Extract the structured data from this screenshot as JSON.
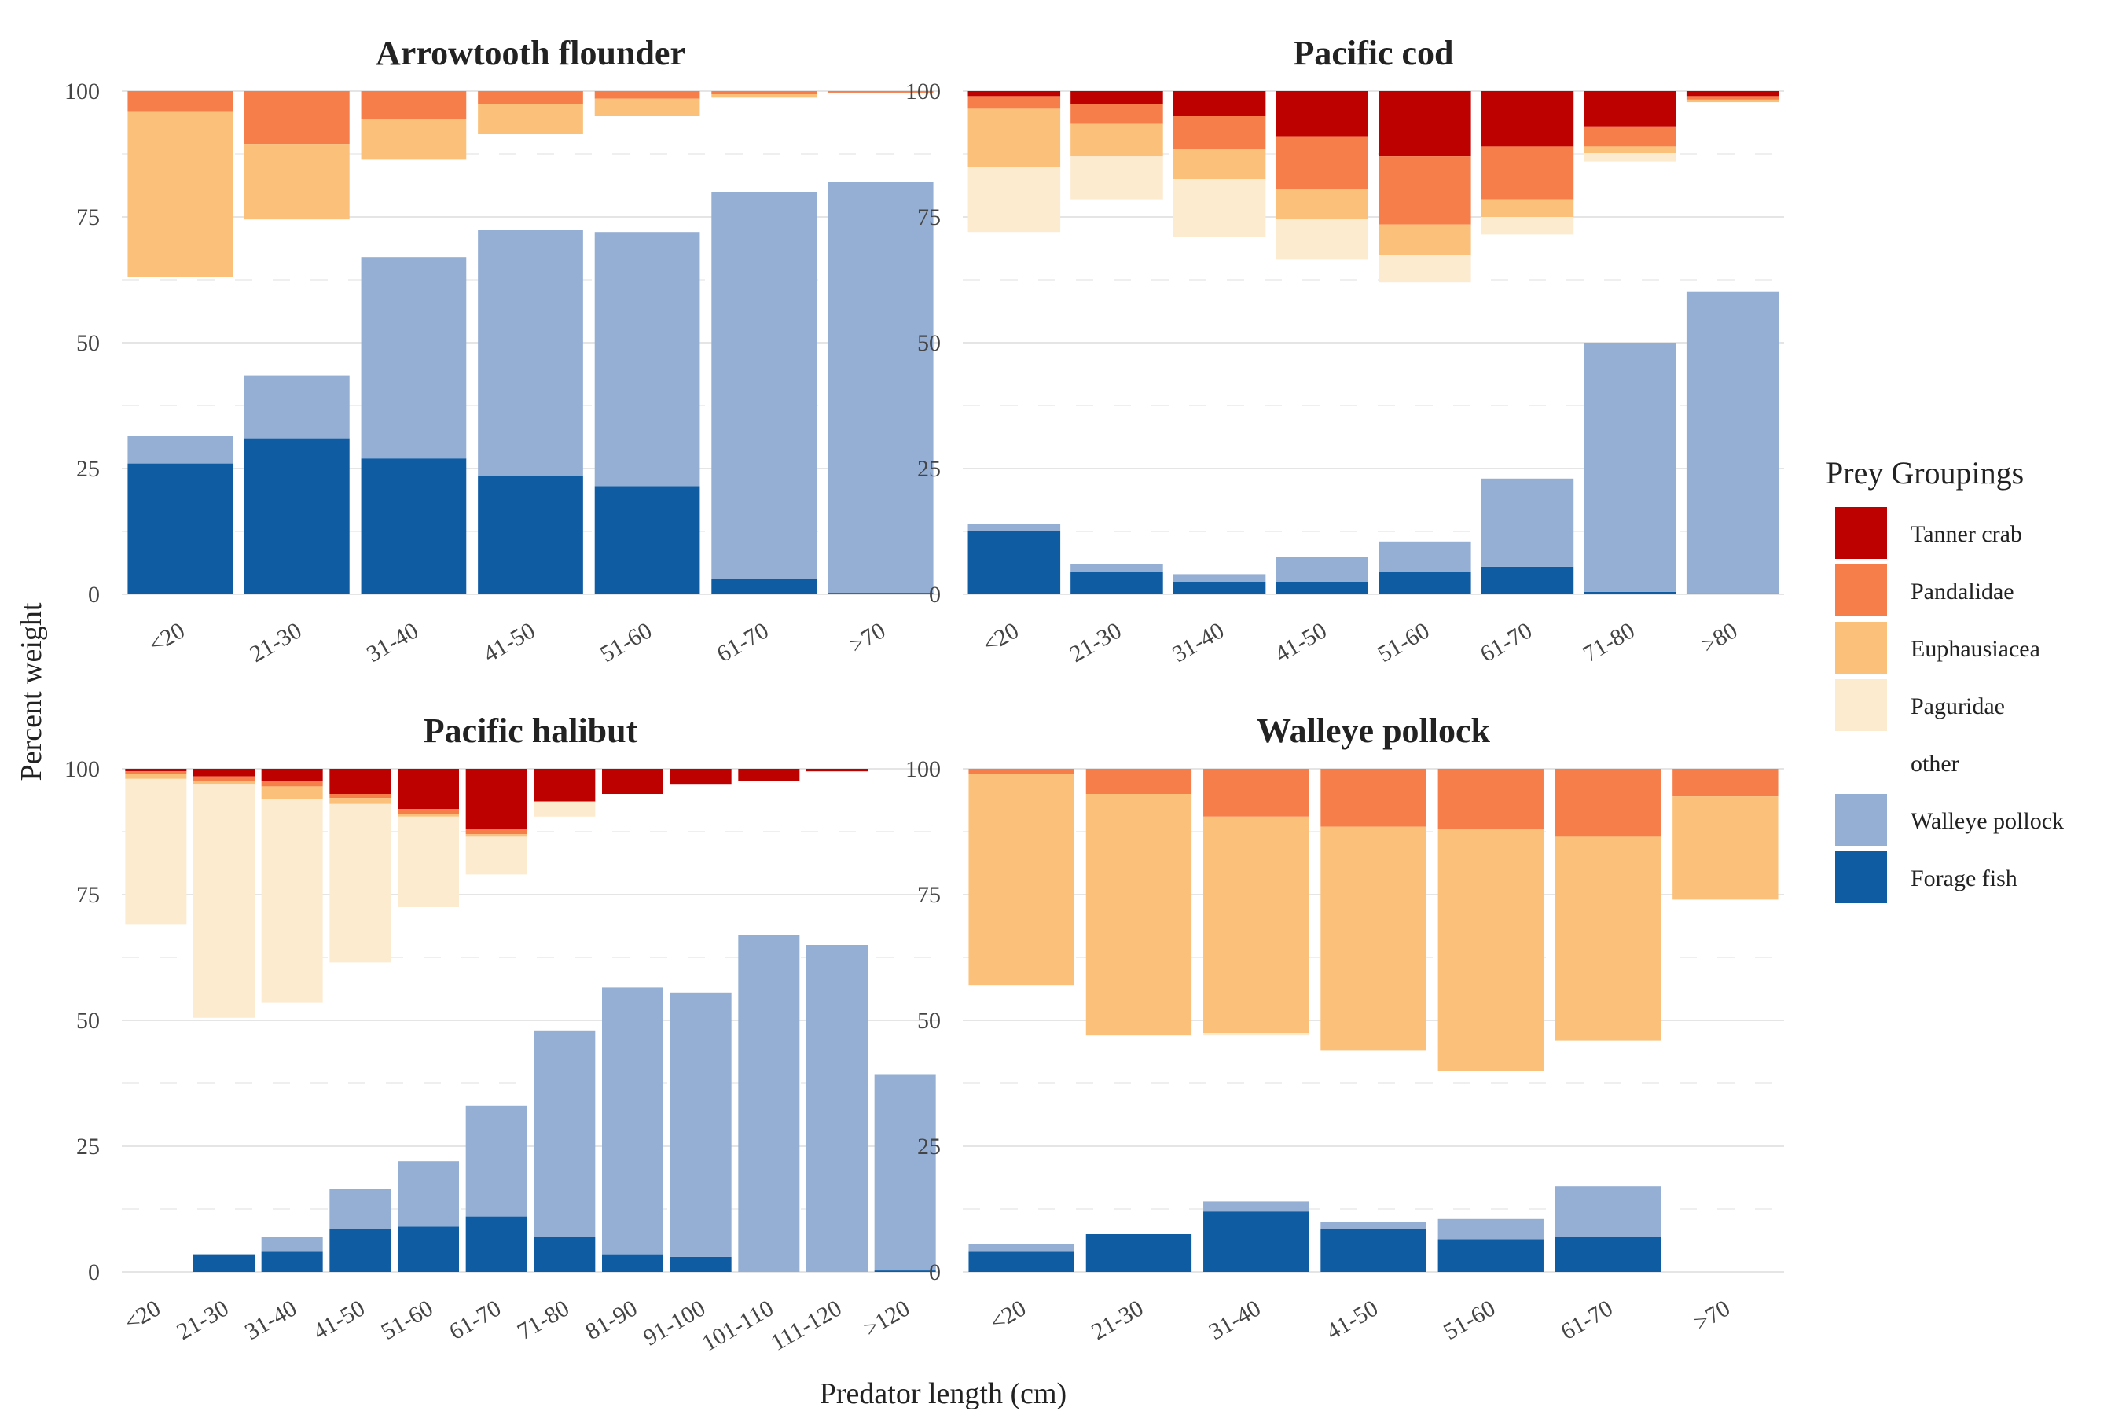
{
  "chart_data": {
    "type": "bar",
    "stacking": "stacked segments from top (prey) and bottom (fish prey), percent weight",
    "xlabel": "Predator length (cm)",
    "ylabel": "Percent weight",
    "ylim": [
      0,
      100
    ],
    "yticks": [
      0,
      25,
      50,
      75,
      100
    ],
    "grid": true,
    "legend": {
      "title": "Prey Groupings",
      "position": "right",
      "entries": [
        {
          "name": "Tanner crab",
          "color": "#bd0000"
        },
        {
          "name": "Pandalidae",
          "color": "#f67e4b"
        },
        {
          "name": "Euphausiacea",
          "color": "#fbc07a"
        },
        {
          "name": "Paguridae",
          "color": "#fdebd0"
        },
        {
          "name": "other",
          "color": "#ffffff"
        },
        {
          "name": "Walleye pollock",
          "color": "#95afd4"
        },
        {
          "name": "Forage fish",
          "color": "#0f5ca3"
        }
      ]
    },
    "panels": [
      {
        "title": "Arrowtooth flounder",
        "categories": [
          "<20",
          "21-30",
          "31-40",
          "41-50",
          "51-60",
          "61-70",
          ">70"
        ],
        "top_series": [
          {
            "name": "Tanner crab",
            "values": [
              0,
              0,
              0,
              0,
              0,
              0,
              0
            ]
          },
          {
            "name": "Pandalidae",
            "values": [
              4,
              10.5,
              5.5,
              2.5,
              1.5,
              0.5,
              0.3
            ]
          },
          {
            "name": "Euphausiacea",
            "values": [
              33,
              15,
              8,
              6,
              3.5,
              0.8,
              0
            ]
          },
          {
            "name": "Paguridae",
            "values": [
              0,
              0,
              0,
              0,
              0,
              0,
              0
            ]
          }
        ],
        "bottom_series": [
          {
            "name": "Forage fish",
            "values": [
              26,
              31,
              27,
              23.5,
              21.5,
              3,
              0.3
            ]
          },
          {
            "name": "Walleye pollock",
            "values": [
              5.5,
              12.5,
              40,
              49,
              50.5,
              77,
              81.7
            ]
          }
        ]
      },
      {
        "title": "Pacific cod",
        "categories": [
          "<20",
          "21-30",
          "31-40",
          "41-50",
          "51-60",
          "61-70",
          "71-80",
          ">80"
        ],
        "top_series": [
          {
            "name": "Tanner crab",
            "values": [
              1,
              2.5,
              5,
              9,
              13,
              11,
              7,
              1
            ]
          },
          {
            "name": "Pandalidae",
            "values": [
              2.5,
              4,
              6.5,
              10.5,
              13.5,
              10.5,
              4,
              0.7
            ]
          },
          {
            "name": "Euphausiacea",
            "values": [
              11.5,
              6.5,
              6,
              6,
              6,
              3.5,
              1.3,
              0.5
            ]
          },
          {
            "name": "Paguridae",
            "values": [
              13,
              8.5,
              11.5,
              8,
              5.5,
              3.5,
              1.7,
              0
            ]
          }
        ],
        "bottom_series": [
          {
            "name": "Forage fish",
            "values": [
              12.5,
              4.5,
              2.5,
              2.5,
              4.5,
              5.5,
              0.5,
              0.2
            ]
          },
          {
            "name": "Walleye pollock",
            "values": [
              1.5,
              1.5,
              1.5,
              5,
              6,
              17.5,
              49.5,
              60
            ]
          }
        ]
      },
      {
        "title": "Pacific halibut",
        "categories": [
          "<20",
          "21-30",
          "31-40",
          "41-50",
          "51-60",
          "61-70",
          "71-80",
          "81-90",
          "91-100",
          "101-110",
          "111-120",
          ">120"
        ],
        "top_series": [
          {
            "name": "Tanner crab",
            "values": [
              0.5,
              1.5,
              2.5,
              5,
              8,
              12,
              6.5,
              5,
              3,
              2.5,
              0.5,
              0
            ]
          },
          {
            "name": "Pandalidae",
            "values": [
              0.5,
              1,
              1,
              0.8,
              1,
              1,
              0,
              0,
              0,
              0,
              0,
              0
            ]
          },
          {
            "name": "Euphausiacea",
            "values": [
              1,
              0.5,
              2.5,
              1.2,
              0.5,
              0.5,
              0,
              0,
              0,
              0,
              0,
              0
            ]
          },
          {
            "name": "Paguridae",
            "values": [
              29,
              46.5,
              40.5,
              31.5,
              18,
              7.5,
              3,
              0,
              0,
              0,
              0,
              0
            ]
          }
        ],
        "bottom_series": [
          {
            "name": "Forage fish",
            "values": [
              0,
              3.5,
              4,
              8.5,
              9,
              11,
              7,
              3.5,
              3,
              0,
              0,
              0.3
            ]
          },
          {
            "name": "Walleye pollock",
            "values": [
              0,
              0,
              3,
              8,
              13,
              22,
              41,
              53,
              52.5,
              67,
              65,
              39
            ]
          }
        ]
      },
      {
        "title": "Walleye pollock",
        "categories": [
          "<20",
          "21-30",
          "31-40",
          "41-50",
          "51-60",
          "61-70",
          ">70"
        ],
        "top_series": [
          {
            "name": "Tanner crab",
            "values": [
              0,
              0,
              0,
              0,
              0,
              0,
              0
            ]
          },
          {
            "name": "Pandalidae",
            "values": [
              1,
              5,
              9.5,
              11.5,
              12,
              13.5,
              5.5
            ]
          },
          {
            "name": "Euphausiacea",
            "values": [
              42,
              48,
              43,
              44.5,
              48,
              40.5,
              20.5
            ]
          },
          {
            "name": "Paguridae",
            "values": [
              0,
              0,
              0.5,
              0,
              0,
              0,
              0
            ]
          }
        ],
        "bottom_series": [
          {
            "name": "Forage fish",
            "values": [
              4,
              7.5,
              12,
              8.5,
              6.5,
              7,
              0
            ]
          },
          {
            "name": "Walleye pollock",
            "values": [
              1.5,
              0,
              2,
              1.5,
              4,
              10,
              0
            ]
          }
        ]
      }
    ]
  }
}
